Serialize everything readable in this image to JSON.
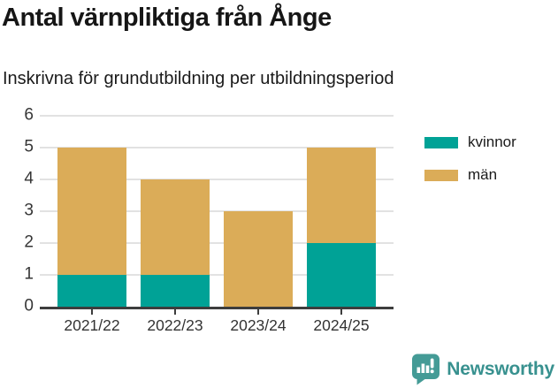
{
  "header": {
    "title": "Antal värnpliktiga från Ånge",
    "subtitle": "Inskrivna för grundutbildning per utbildningsperiod"
  },
  "chart_data": {
    "type": "bar",
    "stacked": true,
    "title": "Antal värnpliktiga från Ånge",
    "subtitle": "Inskrivna för grundutbildning per utbildningsperiod",
    "categories": [
      "2021/22",
      "2022/23",
      "2023/24",
      "2024/25"
    ],
    "series": [
      {
        "name": "kvinnor",
        "color": "#00A296",
        "values": [
          1,
          1,
          0,
          2
        ]
      },
      {
        "name": "män",
        "color": "#DBAC58",
        "values": [
          4,
          3,
          3,
          3
        ]
      }
    ],
    "totals": [
      5,
      4,
      3,
      5
    ],
    "xlabel": "",
    "ylabel": "",
    "ylim": [
      0,
      6
    ],
    "yticks": [
      0,
      1,
      2,
      3,
      4,
      5,
      6
    ],
    "grid": true,
    "legend_position": "right"
  },
  "colors": {
    "kvinnor": "#00A296",
    "man": "#DBAC58",
    "gridline": "#E2E2E2",
    "axis": "#3D3D3D",
    "title_text": "#161616",
    "tick_text": "#363636"
  },
  "footer": {
    "brand": "Newsworthy",
    "brand_color": "#38918F",
    "icon_color": "#449B96",
    "icon": "newsworthy-speech-bubble-barchart-icon"
  }
}
